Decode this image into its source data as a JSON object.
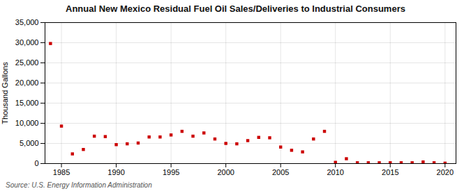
{
  "chart_data": {
    "type": "scatter",
    "title": "Annual New Mexico Residual Fuel Oil Sales/Deliveries to Industrial Consumers",
    "ylabel": "Thousand Gallons",
    "source": "Source: U.S. Energy Information Administration",
    "x": [
      1984,
      1985,
      1986,
      1987,
      1988,
      1989,
      1990,
      1991,
      1992,
      1993,
      1994,
      1995,
      1996,
      1997,
      1998,
      1999,
      2000,
      2001,
      2002,
      2003,
      2004,
      2005,
      2006,
      2007,
      2008,
      2009,
      2010,
      2011,
      2012,
      2013,
      2014,
      2015,
      2016,
      2017,
      2018,
      2019,
      2020
    ],
    "values": [
      29800,
      9300,
      2400,
      3500,
      6800,
      6700,
      4700,
      4900,
      5100,
      6600,
      6600,
      7100,
      8000,
      6800,
      7600,
      6100,
      5000,
      4900,
      5700,
      6500,
      6400,
      4100,
      3300,
      2900,
      6100,
      8000,
      300,
      1200,
      200,
      200,
      200,
      200,
      200,
      200,
      400,
      200,
      100
    ],
    "color": "#cc0000",
    "marker": "square",
    "xlim": [
      1983.5,
      2021
    ],
    "xticks": [
      1985,
      1990,
      1995,
      2000,
      2005,
      2010,
      2015,
      2020
    ],
    "ylim": [
      0,
      35000
    ],
    "yticks": [
      0,
      {
        "value": 5000,
        "label": "5,000"
      },
      {
        "value": 10000,
        "label": "10,000"
      },
      {
        "value": 15000,
        "label": "15,000"
      },
      {
        "value": 20000,
        "label": "20,000"
      },
      {
        "value": 25000,
        "label": "25,000"
      },
      {
        "value": 30000,
        "label": "30,000"
      },
      {
        "value": 35000,
        "label": "35,000"
      }
    ],
    "grid": true
  }
}
